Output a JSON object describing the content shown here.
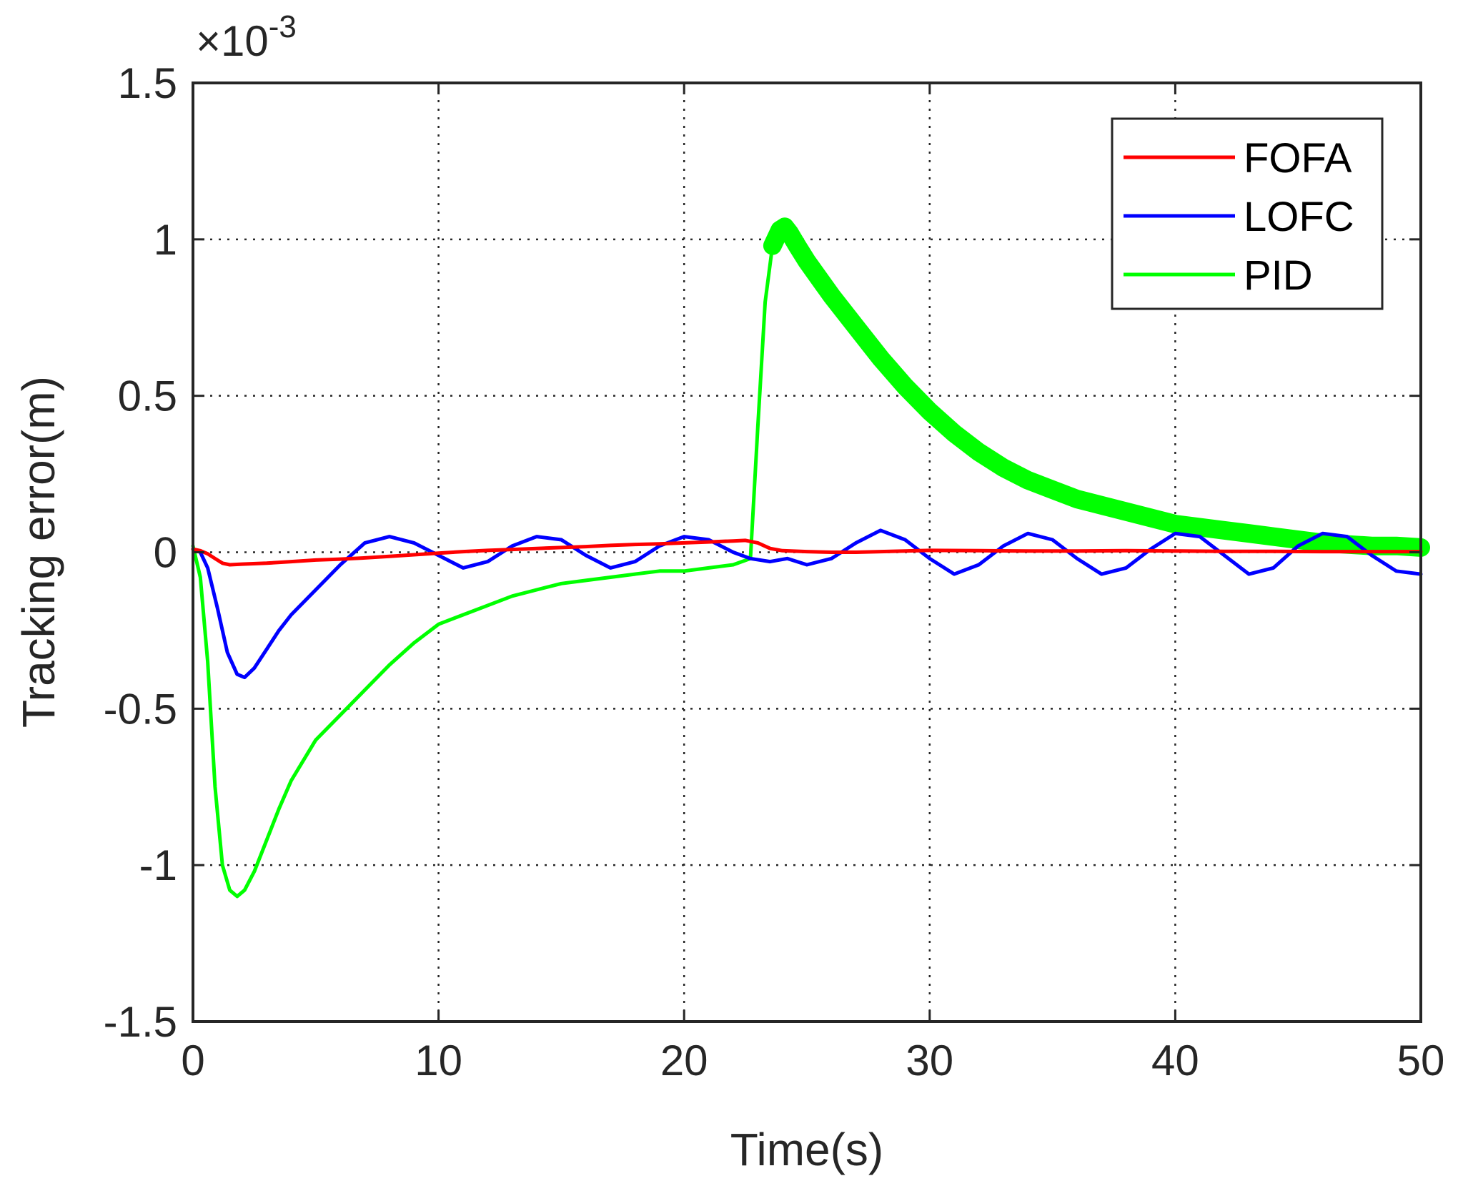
{
  "colors": {
    "FOFA": "#ff0000",
    "LOFC": "#0000ff",
    "PID": "#00ff00",
    "axis": "#262626"
  },
  "chart_data": {
    "type": "line",
    "title": "",
    "xlabel": "Time(s)",
    "ylabel": "Tracking error(m)",
    "y_multiplier_label": "×10",
    "y_multiplier_exponent": "-3",
    "xlim": [
      0,
      50
    ],
    "ylim": [
      -1.5,
      1.5
    ],
    "xticks": [
      0,
      10,
      20,
      30,
      40,
      50
    ],
    "xtick_labels": [
      "0",
      "10",
      "20",
      "30",
      "40",
      "50"
    ],
    "yticks": [
      -1.5,
      -1,
      -0.5,
      0,
      0.5,
      1,
      1.5
    ],
    "ytick_labels": [
      "-1.5",
      "-1",
      "-0.5",
      "0",
      "0.5",
      "1",
      "1.5"
    ],
    "grid": true,
    "legend_position": "top-right",
    "series": [
      {
        "name": "FOFA",
        "x": [
          0,
          0.3,
          0.6,
          0.9,
          1.2,
          1.5,
          2,
          3,
          4,
          5,
          6,
          7,
          8,
          9,
          10,
          11,
          12,
          13,
          14,
          15,
          16,
          17,
          18,
          19,
          20,
          21,
          22,
          22.5,
          23,
          23.5,
          24,
          25,
          26,
          27,
          28,
          29,
          30,
          32,
          34,
          36,
          38,
          40,
          42,
          44,
          46,
          48,
          50
        ],
        "y": [
          0.01,
          0.005,
          -0.005,
          -0.02,
          -0.035,
          -0.04,
          -0.038,
          -0.035,
          -0.03,
          -0.025,
          -0.022,
          -0.018,
          -0.013,
          -0.008,
          -0.003,
          0.002,
          0.006,
          0.009,
          0.012,
          0.015,
          0.018,
          0.022,
          0.025,
          0.027,
          0.03,
          0.033,
          0.036,
          0.038,
          0.03,
          0.012,
          0.005,
          0.002,
          0.0,
          0.0,
          0.002,
          0.004,
          0.006,
          0.005,
          0.004,
          0.004,
          0.005,
          0.004,
          0.003,
          0.003,
          0.002,
          0.002,
          0.002
        ]
      },
      {
        "name": "LOFC",
        "x": [
          0,
          0.3,
          0.6,
          1.0,
          1.4,
          1.8,
          2.1,
          2.5,
          3,
          3.5,
          4,
          5,
          6,
          7,
          8,
          9,
          10,
          11,
          12,
          13,
          14,
          15,
          16,
          17,
          18,
          19,
          20,
          21,
          22,
          22.7,
          23.5,
          24.2,
          25,
          26,
          27,
          28,
          29,
          30,
          31,
          32,
          33,
          34,
          35,
          36,
          37,
          38,
          39,
          40,
          41,
          42,
          43,
          44,
          45,
          46,
          47,
          48,
          49,
          50
        ],
        "y": [
          0.01,
          0.0,
          -0.05,
          -0.18,
          -0.32,
          -0.39,
          -0.4,
          -0.37,
          -0.31,
          -0.25,
          -0.2,
          -0.12,
          -0.04,
          0.03,
          0.05,
          0.03,
          -0.01,
          -0.05,
          -0.03,
          0.02,
          0.05,
          0.04,
          -0.01,
          -0.05,
          -0.03,
          0.02,
          0.05,
          0.04,
          0.0,
          -0.02,
          -0.03,
          -0.02,
          -0.04,
          -0.02,
          0.03,
          0.07,
          0.04,
          -0.02,
          -0.07,
          -0.04,
          0.02,
          0.06,
          0.04,
          -0.02,
          -0.07,
          -0.05,
          0.01,
          0.06,
          0.05,
          -0.01,
          -0.07,
          -0.05,
          0.02,
          0.06,
          0.05,
          -0.01,
          -0.06,
          -0.07
        ]
      },
      {
        "name": "PID",
        "x": [
          0,
          0.3,
          0.6,
          0.9,
          1.2,
          1.5,
          1.8,
          2.1,
          2.5,
          3,
          3.5,
          4,
          5,
          6,
          7,
          8,
          9,
          10,
          11,
          12,
          13,
          14,
          15,
          16,
          17,
          18,
          19,
          20,
          21,
          22,
          22.7,
          23.0,
          23.3,
          23.6,
          23.9,
          24.1,
          24.3,
          24.6,
          25,
          26,
          27,
          28,
          29,
          30,
          31,
          32,
          33,
          34,
          35,
          36,
          37,
          38,
          39,
          40,
          41,
          42,
          43,
          44,
          45,
          46,
          47,
          48,
          49,
          50
        ],
        "y": [
          0.02,
          -0.08,
          -0.35,
          -0.75,
          -1.0,
          -1.08,
          -1.1,
          -1.08,
          -1.02,
          -0.92,
          -0.82,
          -0.73,
          -0.6,
          -0.52,
          -0.44,
          -0.36,
          -0.29,
          -0.23,
          -0.2,
          -0.17,
          -0.14,
          -0.12,
          -0.1,
          -0.09,
          -0.08,
          -0.07,
          -0.06,
          -0.06,
          -0.05,
          -0.04,
          -0.02,
          0.4,
          0.8,
          0.98,
          1.03,
          1.04,
          1.02,
          0.98,
          0.93,
          0.82,
          0.72,
          0.62,
          0.53,
          0.45,
          0.38,
          0.32,
          0.27,
          0.23,
          0.2,
          0.17,
          0.15,
          0.13,
          0.11,
          0.09,
          0.08,
          0.07,
          0.06,
          0.05,
          0.04,
          0.03,
          0.025,
          0.02,
          0.02,
          0.015
        ],
        "band_start_x": 23.6
      }
    ]
  }
}
